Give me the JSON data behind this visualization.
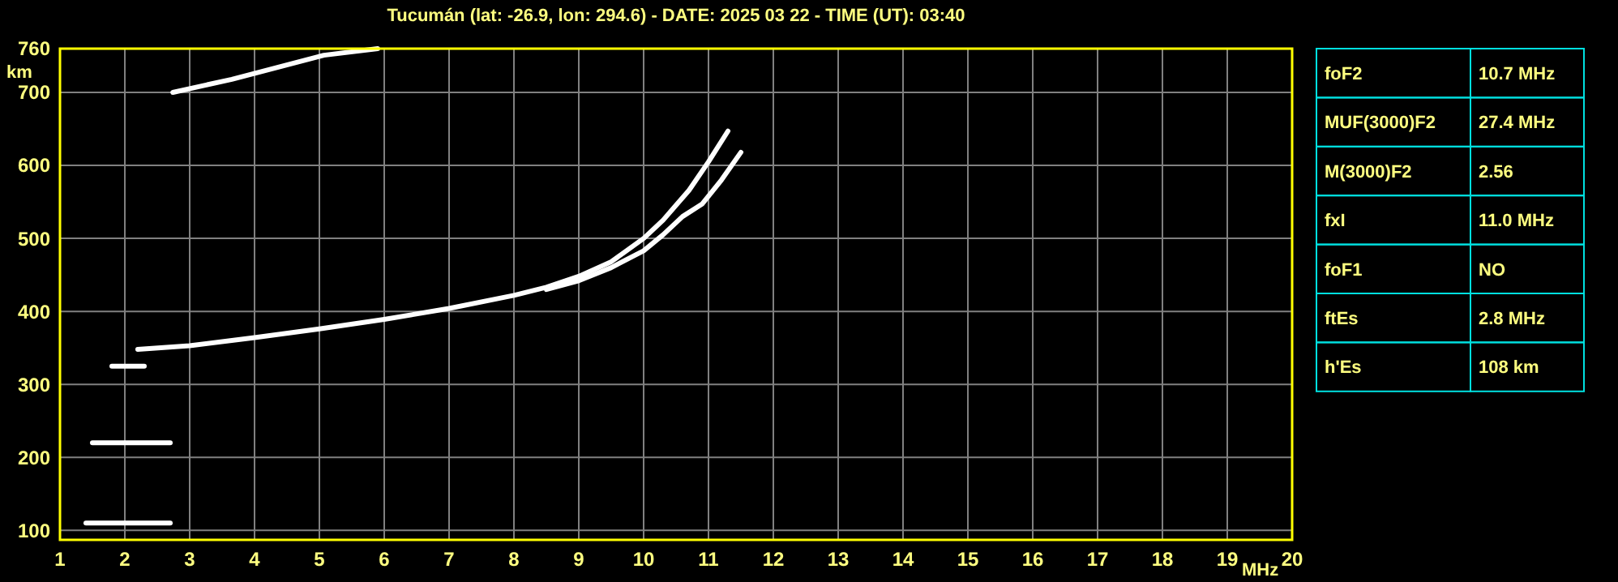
{
  "chart_data": [
    {
      "type": "line",
      "title": "Tucumán (lat: -26.9, lon: 294.6) - DATE: 2025 03 22 - TIME (UT): 03:40",
      "xlabel": "MHz",
      "ylabel": "km",
      "xlim": [
        1,
        20
      ],
      "ylim": [
        87,
        760
      ],
      "xticks": [
        1,
        2,
        3,
        4,
        5,
        6,
        7,
        8,
        9,
        10,
        11,
        12,
        13,
        14,
        15,
        16,
        17,
        18,
        19,
        20
      ],
      "yticks": [
        100,
        200,
        300,
        400,
        500,
        600,
        700,
        760
      ],
      "grid": true,
      "marker": "none",
      "line_style": "solid",
      "series": [
        {
          "color": "#ffffff",
          "x": [
            2.2,
            3,
            4,
            5,
            6,
            7,
            8,
            8.5,
            9,
            9.5,
            10,
            10.3,
            10.7,
            11.0,
            11.3
          ],
          "values": [
            348,
            353,
            364,
            376,
            389,
            404,
            422,
            433,
            448,
            468,
            500,
            525,
            566,
            605,
            647
          ]
        },
        {
          "color": "#ffffff",
          "x": [
            8.5,
            9,
            9.5,
            10,
            10.3,
            10.6,
            10.9,
            11.2,
            11.5
          ],
          "values": [
            430,
            442,
            460,
            483,
            505,
            530,
            547,
            580,
            618
          ]
        },
        {
          "color": "#ffffff",
          "x": [
            1.4,
            2.7
          ],
          "values": [
            110,
            110
          ]
        },
        {
          "color": "#ffffff",
          "x": [
            1.5,
            2.7
          ],
          "values": [
            220,
            220
          ]
        },
        {
          "color": "#ffffff",
          "x": [
            1.8,
            2.3
          ],
          "values": [
            325,
            325
          ]
        },
        {
          "color": "#ffffff",
          "x": [
            2.74,
            3.65,
            5.07,
            5.9
          ],
          "values": [
            700,
            718,
            751,
            760
          ]
        }
      ]
    },
    {
      "type": "other",
      "categories": [
        "foF2",
        "MUF(3000)F2",
        "M(3000)F2",
        "fxI",
        "foF1",
        "ftEs",
        "h'Es"
      ],
      "value_labels": [
        "10.7 MHz",
        "27.4 MHz",
        "2.56",
        "11.0 MHz",
        "NO",
        "2.8 MHz",
        "108 km"
      ]
    }
  ]
}
